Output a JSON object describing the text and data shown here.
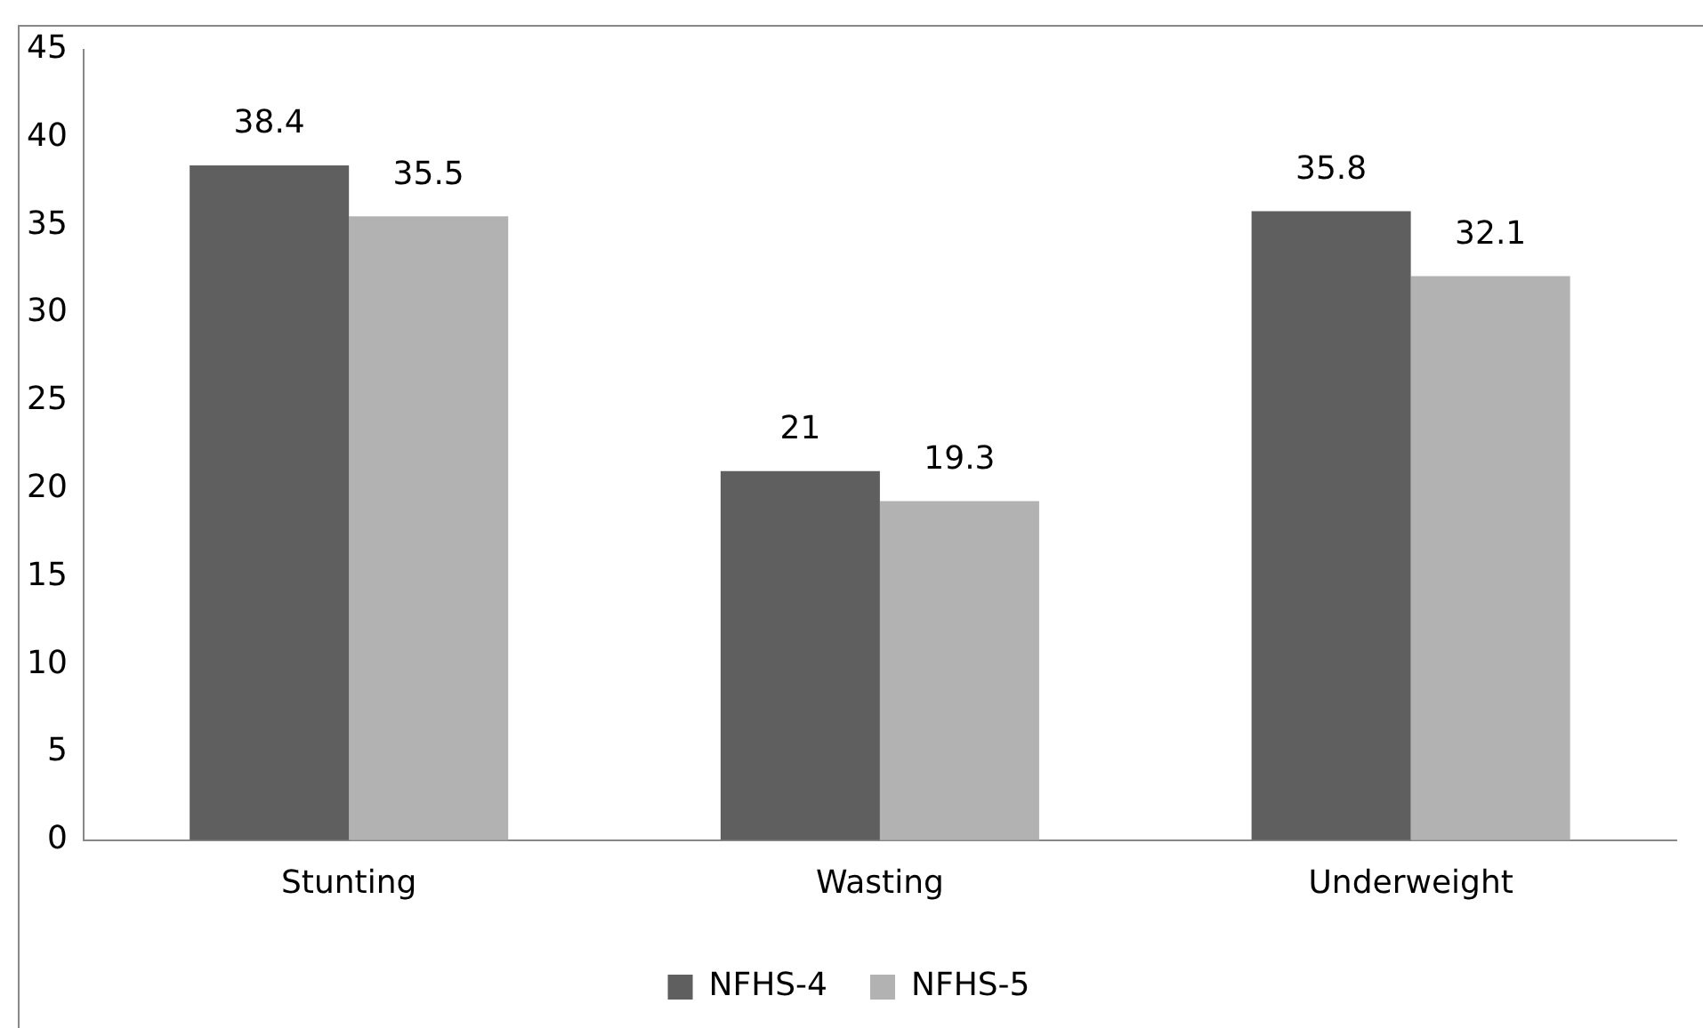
{
  "chart_data": {
    "type": "bar",
    "categories": [
      "Stunting",
      "Wasting",
      "Underweight"
    ],
    "series": [
      {
        "name": "NFHS-4",
        "color": "#5f5f5f",
        "values": [
          38.4,
          21,
          35.8
        ]
      },
      {
        "name": "NFHS-5",
        "color": "#b2b2b2",
        "values": [
          35.5,
          19.3,
          32.1
        ]
      }
    ],
    "ylim": [
      0,
      45
    ],
    "yticks": [
      0,
      5,
      10,
      15,
      20,
      25,
      30,
      35,
      40,
      45
    ],
    "grid": false,
    "legend": "bottom",
    "data_labels": true
  }
}
